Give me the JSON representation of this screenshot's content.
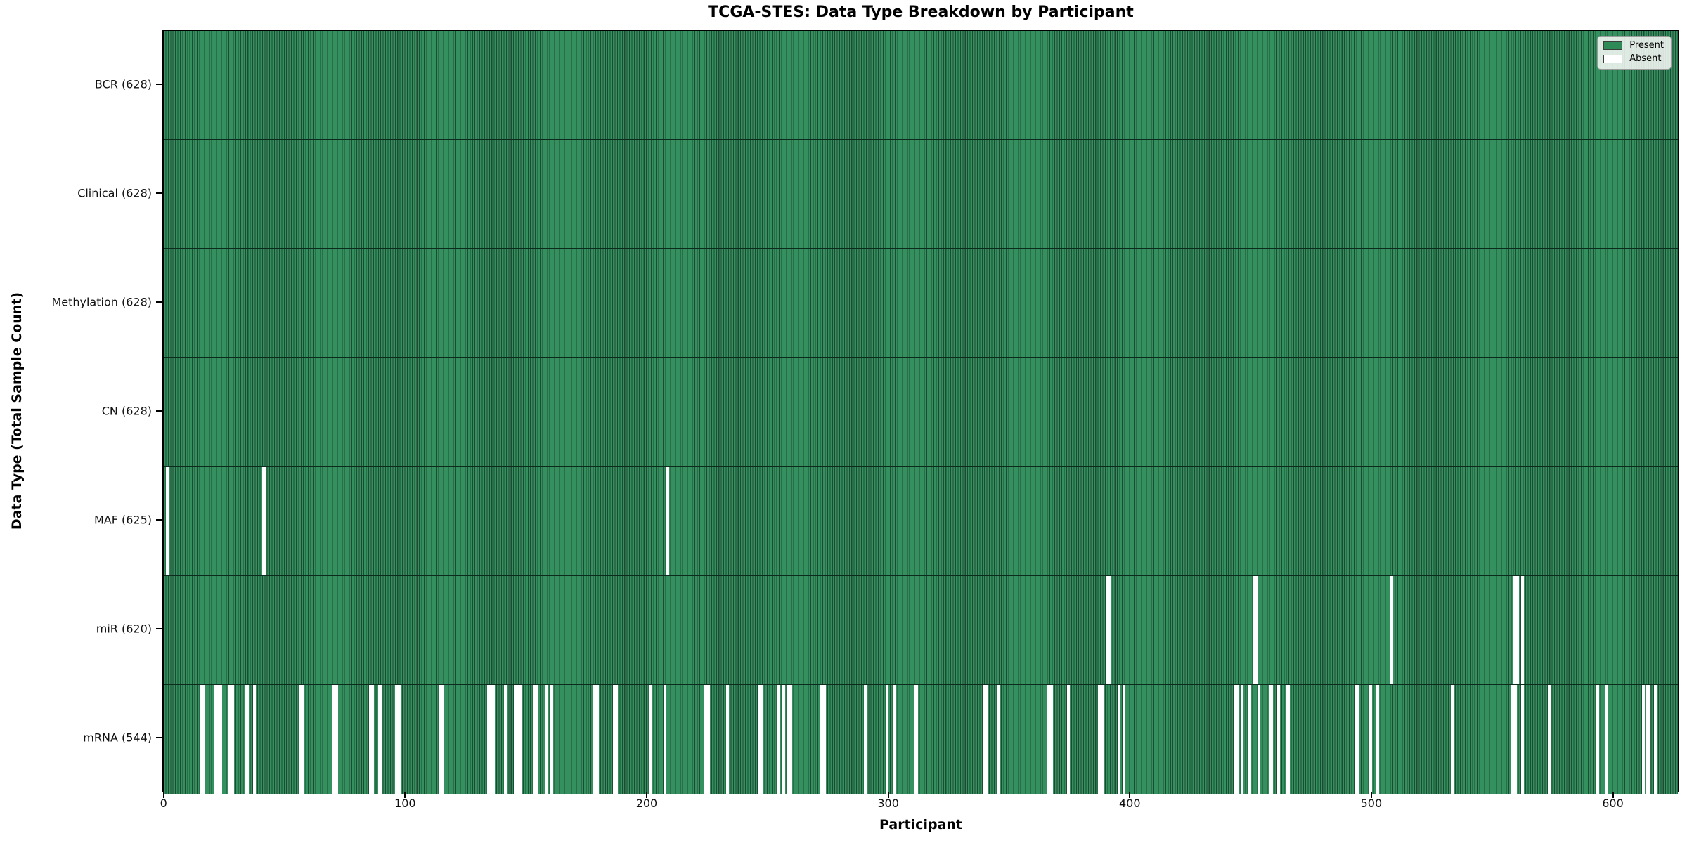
{
  "chart_data": {
    "type": "heatmap",
    "title": "TCGA-STES: Data Type Breakdown by Participant",
    "xlabel": "Participant",
    "ylabel": "Data Type (Total Sample Count)",
    "n_participants": 628,
    "x_ticks": [
      0,
      100,
      200,
      300,
      400,
      500,
      600
    ],
    "legend_position": "upper right",
    "legend": [
      {
        "label": "Present",
        "color": "#2e8b57"
      },
      {
        "label": "Absent",
        "color": "#ffffff"
      }
    ],
    "colors": {
      "present": "#2e8b57",
      "present_light_band": "#35905f",
      "bar_edge": "#1d4a33",
      "absent": "#ffffff",
      "row_divider": "#0d2b1c",
      "spine": "#000000"
    },
    "rows": [
      {
        "name": "BCR",
        "label": "BCR (628)",
        "present_count": 628,
        "absent_indices": []
      },
      {
        "name": "Clinical",
        "label": "Clinical (628)",
        "present_count": 628,
        "absent_indices": []
      },
      {
        "name": "Methylation",
        "label": "Methylation (628)",
        "present_count": 628,
        "absent_indices": []
      },
      {
        "name": "CN",
        "label": "CN (628)",
        "present_count": 628,
        "absent_indices": []
      },
      {
        "name": "MAF",
        "label": "MAF (625)",
        "present_count": 625,
        "absent_indices": [
          1,
          41,
          208
        ]
      },
      {
        "name": "miR",
        "label": "miR (620)",
        "present_count": 620,
        "absent_indices": [
          390,
          391,
          451,
          452,
          508,
          559,
          560,
          562
        ]
      },
      {
        "name": "mRNA",
        "label": "mRNA (544)",
        "present_count": 544,
        "absent_indices": [
          15,
          16,
          21,
          22,
          23,
          27,
          28,
          34,
          37,
          56,
          57,
          70,
          71,
          85,
          86,
          89,
          96,
          97,
          114,
          115,
          134,
          135,
          136,
          141,
          145,
          146,
          147,
          153,
          154,
          158,
          160,
          178,
          179,
          186,
          187,
          201,
          207,
          224,
          225,
          233,
          246,
          247,
          254,
          256,
          258,
          259,
          272,
          273,
          290,
          299,
          302,
          311,
          339,
          340,
          345,
          366,
          367,
          374,
          387,
          388,
          395,
          397,
          443,
          444,
          446,
          449,
          453,
          458,
          461,
          465,
          493,
          494,
          499,
          502,
          533,
          558,
          559,
          562,
          573,
          593,
          597,
          612,
          614,
          617
        ]
      }
    ]
  }
}
